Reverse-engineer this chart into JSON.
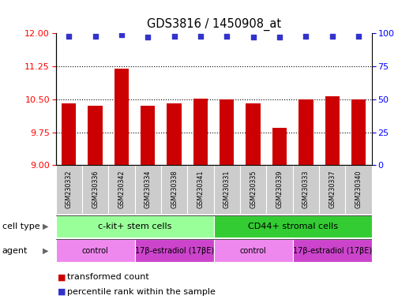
{
  "title": "GDS3816 / 1450908_at",
  "samples": [
    "GSM230332",
    "GSM230336",
    "GSM230342",
    "GSM230334",
    "GSM230338",
    "GSM230341",
    "GSM230331",
    "GSM230335",
    "GSM230339",
    "GSM230333",
    "GSM230337",
    "GSM230340"
  ],
  "bar_values": [
    10.4,
    10.35,
    11.2,
    10.35,
    10.4,
    10.52,
    10.5,
    10.4,
    9.85,
    10.5,
    10.57,
    10.5
  ],
  "percentile_values": [
    98,
    98,
    99,
    97,
    98,
    98,
    98,
    97,
    97,
    98,
    98,
    98
  ],
  "ylim_left": [
    9,
    12
  ],
  "ylim_right": [
    0,
    100
  ],
  "yticks_left": [
    9,
    9.75,
    10.5,
    11.25,
    12
  ],
  "yticks_right": [
    0,
    25,
    50,
    75,
    100
  ],
  "bar_color": "#cc0000",
  "dot_color": "#3333cc",
  "sample_box_color": "#cccccc",
  "cell_type_groups": [
    {
      "label": "c-kit+ stem cells",
      "start": 0,
      "end": 5,
      "color": "#99ff99"
    },
    {
      "label": "CD44+ stromal cells",
      "start": 6,
      "end": 11,
      "color": "#33cc33"
    }
  ],
  "agent_groups": [
    {
      "label": "control",
      "start": 0,
      "end": 2,
      "color": "#ee88ee"
    },
    {
      "label": "17β-estradiol (17βE)",
      "start": 3,
      "end": 5,
      "color": "#cc44cc"
    },
    {
      "label": "control",
      "start": 6,
      "end": 8,
      "color": "#ee88ee"
    },
    {
      "label": "17β-estradiol (17βE)",
      "start": 9,
      "end": 11,
      "color": "#cc44cc"
    }
  ],
  "legend_items": [
    {
      "label": "transformed count",
      "color": "#cc0000"
    },
    {
      "label": "percentile rank within the sample",
      "color": "#3333cc"
    }
  ],
  "cell_type_label": "cell type",
  "agent_label": "agent"
}
